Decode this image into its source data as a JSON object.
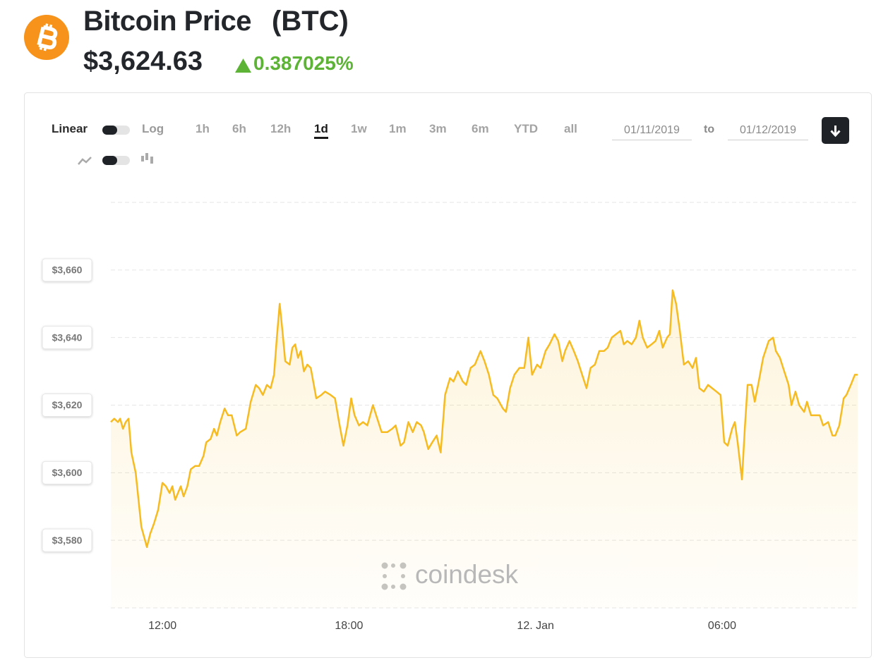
{
  "header": {
    "title": "Bitcoin Price",
    "symbol": "(BTC)",
    "price": "$3,624.63",
    "change": "0.387025%"
  },
  "controls": {
    "scale_options": [
      "Linear",
      "Log"
    ],
    "ranges": [
      "1h",
      "6h",
      "12h",
      "1d",
      "1w",
      "1m",
      "3m",
      "6m",
      "YTD",
      "all"
    ],
    "selected_range": 3,
    "date_from": "01/11/2019",
    "date_separator": "to",
    "date_to": "01/12/2019"
  },
  "watermark": "coindesk",
  "chart_data": {
    "type": "area",
    "color": "#f7bb22",
    "grid": true,
    "x": [
      10.34,
      10.45,
      10.57,
      10.64,
      10.73,
      10.82,
      10.91,
      11.0,
      11.14,
      11.32,
      11.5,
      11.61,
      11.73,
      11.86,
      12.0,
      12.11,
      12.23,
      12.32,
      12.41,
      12.5,
      12.59,
      12.68,
      12.8,
      12.91,
      13.05,
      13.18,
      13.32,
      13.41,
      13.55,
      13.66,
      13.75,
      13.86,
      14.0,
      14.11,
      14.23,
      14.39,
      14.5,
      14.68,
      14.84,
      15.0,
      15.11,
      15.23,
      15.36,
      15.48,
      15.59,
      15.68,
      15.77,
      15.86,
      15.95,
      16.09,
      16.18,
      16.27,
      16.36,
      16.45,
      16.55,
      16.66,
      16.77,
      16.95,
      17.11,
      17.23,
      17.41,
      17.55,
      17.68,
      17.82,
      17.95,
      18.07,
      18.18,
      18.32,
      18.45,
      18.59,
      18.77,
      18.91,
      19.05,
      19.23,
      19.39,
      19.5,
      19.66,
      19.77,
      19.91,
      20.05,
      20.18,
      20.32,
      20.41,
      20.55,
      20.68,
      20.82,
      20.95,
      21.09,
      21.25,
      21.36,
      21.5,
      21.66,
      21.77,
      21.91,
      22.05,
      22.23,
      22.36,
      22.5,
      22.64,
      22.77,
      22.95,
      23.05,
      23.18,
      23.32,
      23.48,
      23.64,
      23.77,
      23.89,
      24.05,
      24.16,
      24.32,
      24.45,
      24.61,
      24.73,
      24.86,
      24.95,
      25.09,
      25.23,
      25.36,
      25.5,
      25.64,
      25.77,
      25.91,
      26.05,
      26.2,
      26.32,
      26.45,
      26.59,
      26.73,
      26.84,
      26.95,
      27.09,
      27.23,
      27.34,
      27.45,
      27.59,
      27.73,
      27.86,
      27.98,
      28.09,
      28.23,
      28.32,
      28.41,
      28.52,
      28.64,
      28.77,
      28.91,
      29.05,
      29.16,
      29.27,
      29.41,
      29.55,
      29.68,
      29.82,
      29.95,
      30.07,
      30.18,
      30.32,
      30.41,
      30.5,
      30.64,
      30.73,
      30.82,
      30.95,
      31.05,
      31.18,
      31.32,
      31.5,
      31.64,
      31.73,
      31.86,
      32.0,
      32.14,
      32.23,
      32.36,
      32.48,
      32.64,
      32.73,
      32.86,
      33.0,
      33.14,
      33.25,
      33.41,
      33.55,
      33.64,
      33.77,
      33.91,
      34.0,
      34.14,
      34.27,
      34.36
    ],
    "values": [
      3615,
      3616,
      3615,
      3616,
      3613,
      3615,
      3616,
      3606,
      3600,
      3584,
      3578,
      3582,
      3585,
      3589,
      3597,
      3596,
      3594,
      3596,
      3592,
      3594,
      3596,
      3593,
      3596,
      3601,
      3602,
      3602,
      3605,
      3609,
      3610,
      3613,
      3611,
      3615,
      3619,
      3617,
      3617,
      3611,
      3612,
      3613,
      3621,
      3626,
      3625,
      3623,
      3626,
      3625,
      3629,
      3640,
      3650,
      3642,
      3633,
      3632,
      3637,
      3638,
      3634,
      3636,
      3630,
      3632,
      3631,
      3622,
      3623,
      3624,
      3623,
      3622,
      3615,
      3608,
      3614,
      3622,
      3617,
      3614,
      3615,
      3614,
      3620,
      3616,
      3612,
      3612,
      3613,
      3614,
      3608,
      3609,
      3615,
      3612,
      3615,
      3614,
      3612,
      3607,
      3609,
      3611,
      3606,
      3623,
      3628,
      3627,
      3630,
      3627,
      3626,
      3631,
      3632,
      3636,
      3633,
      3629,
      3623,
      3622,
      3619,
      3618,
      3625,
      3629,
      3631,
      3631,
      3640,
      3629,
      3632,
      3631,
      3636,
      3638,
      3641,
      3639,
      3633,
      3636,
      3639,
      3636,
      3633,
      3629,
      3625,
      3631,
      3632,
      3636,
      3636,
      3637,
      3640,
      3641,
      3642,
      3638,
      3639,
      3638,
      3640,
      3645,
      3640,
      3637,
      3638,
      3639,
      3642,
      3637,
      3640,
      3641,
      3654,
      3650,
      3642,
      3632,
      3633,
      3631,
      3634,
      3625,
      3624,
      3626,
      3625,
      3624,
      3623,
      3609,
      3608,
      3613,
      3615,
      3609,
      3598,
      3613,
      3626,
      3626,
      3621,
      3627,
      3634,
      3639,
      3640,
      3636,
      3634,
      3630,
      3626,
      3620,
      3624,
      3620,
      3618,
      3621,
      3617,
      3617,
      3617,
      3614,
      3615,
      3611,
      3611,
      3614,
      3622,
      3623,
      3626,
      3629,
      3629
    ],
    "xlim": [
      10.34,
      34.36
    ],
    "ylim": [
      3560,
      3680
    ],
    "xticks": [
      {
        "value": 12,
        "label": "12:00"
      },
      {
        "value": 18,
        "label": "18:00"
      },
      {
        "value": 24,
        "label": "12. Jan"
      },
      {
        "value": 30,
        "label": "06:00"
      }
    ],
    "yticks": [
      {
        "value": 3580,
        "label": "$3,580"
      },
      {
        "value": 3600,
        "label": "$3,600"
      },
      {
        "value": 3620,
        "label": "$3,620"
      },
      {
        "value": 3640,
        "label": "$3,640"
      },
      {
        "value": 3660,
        "label": "$3,660"
      }
    ]
  }
}
